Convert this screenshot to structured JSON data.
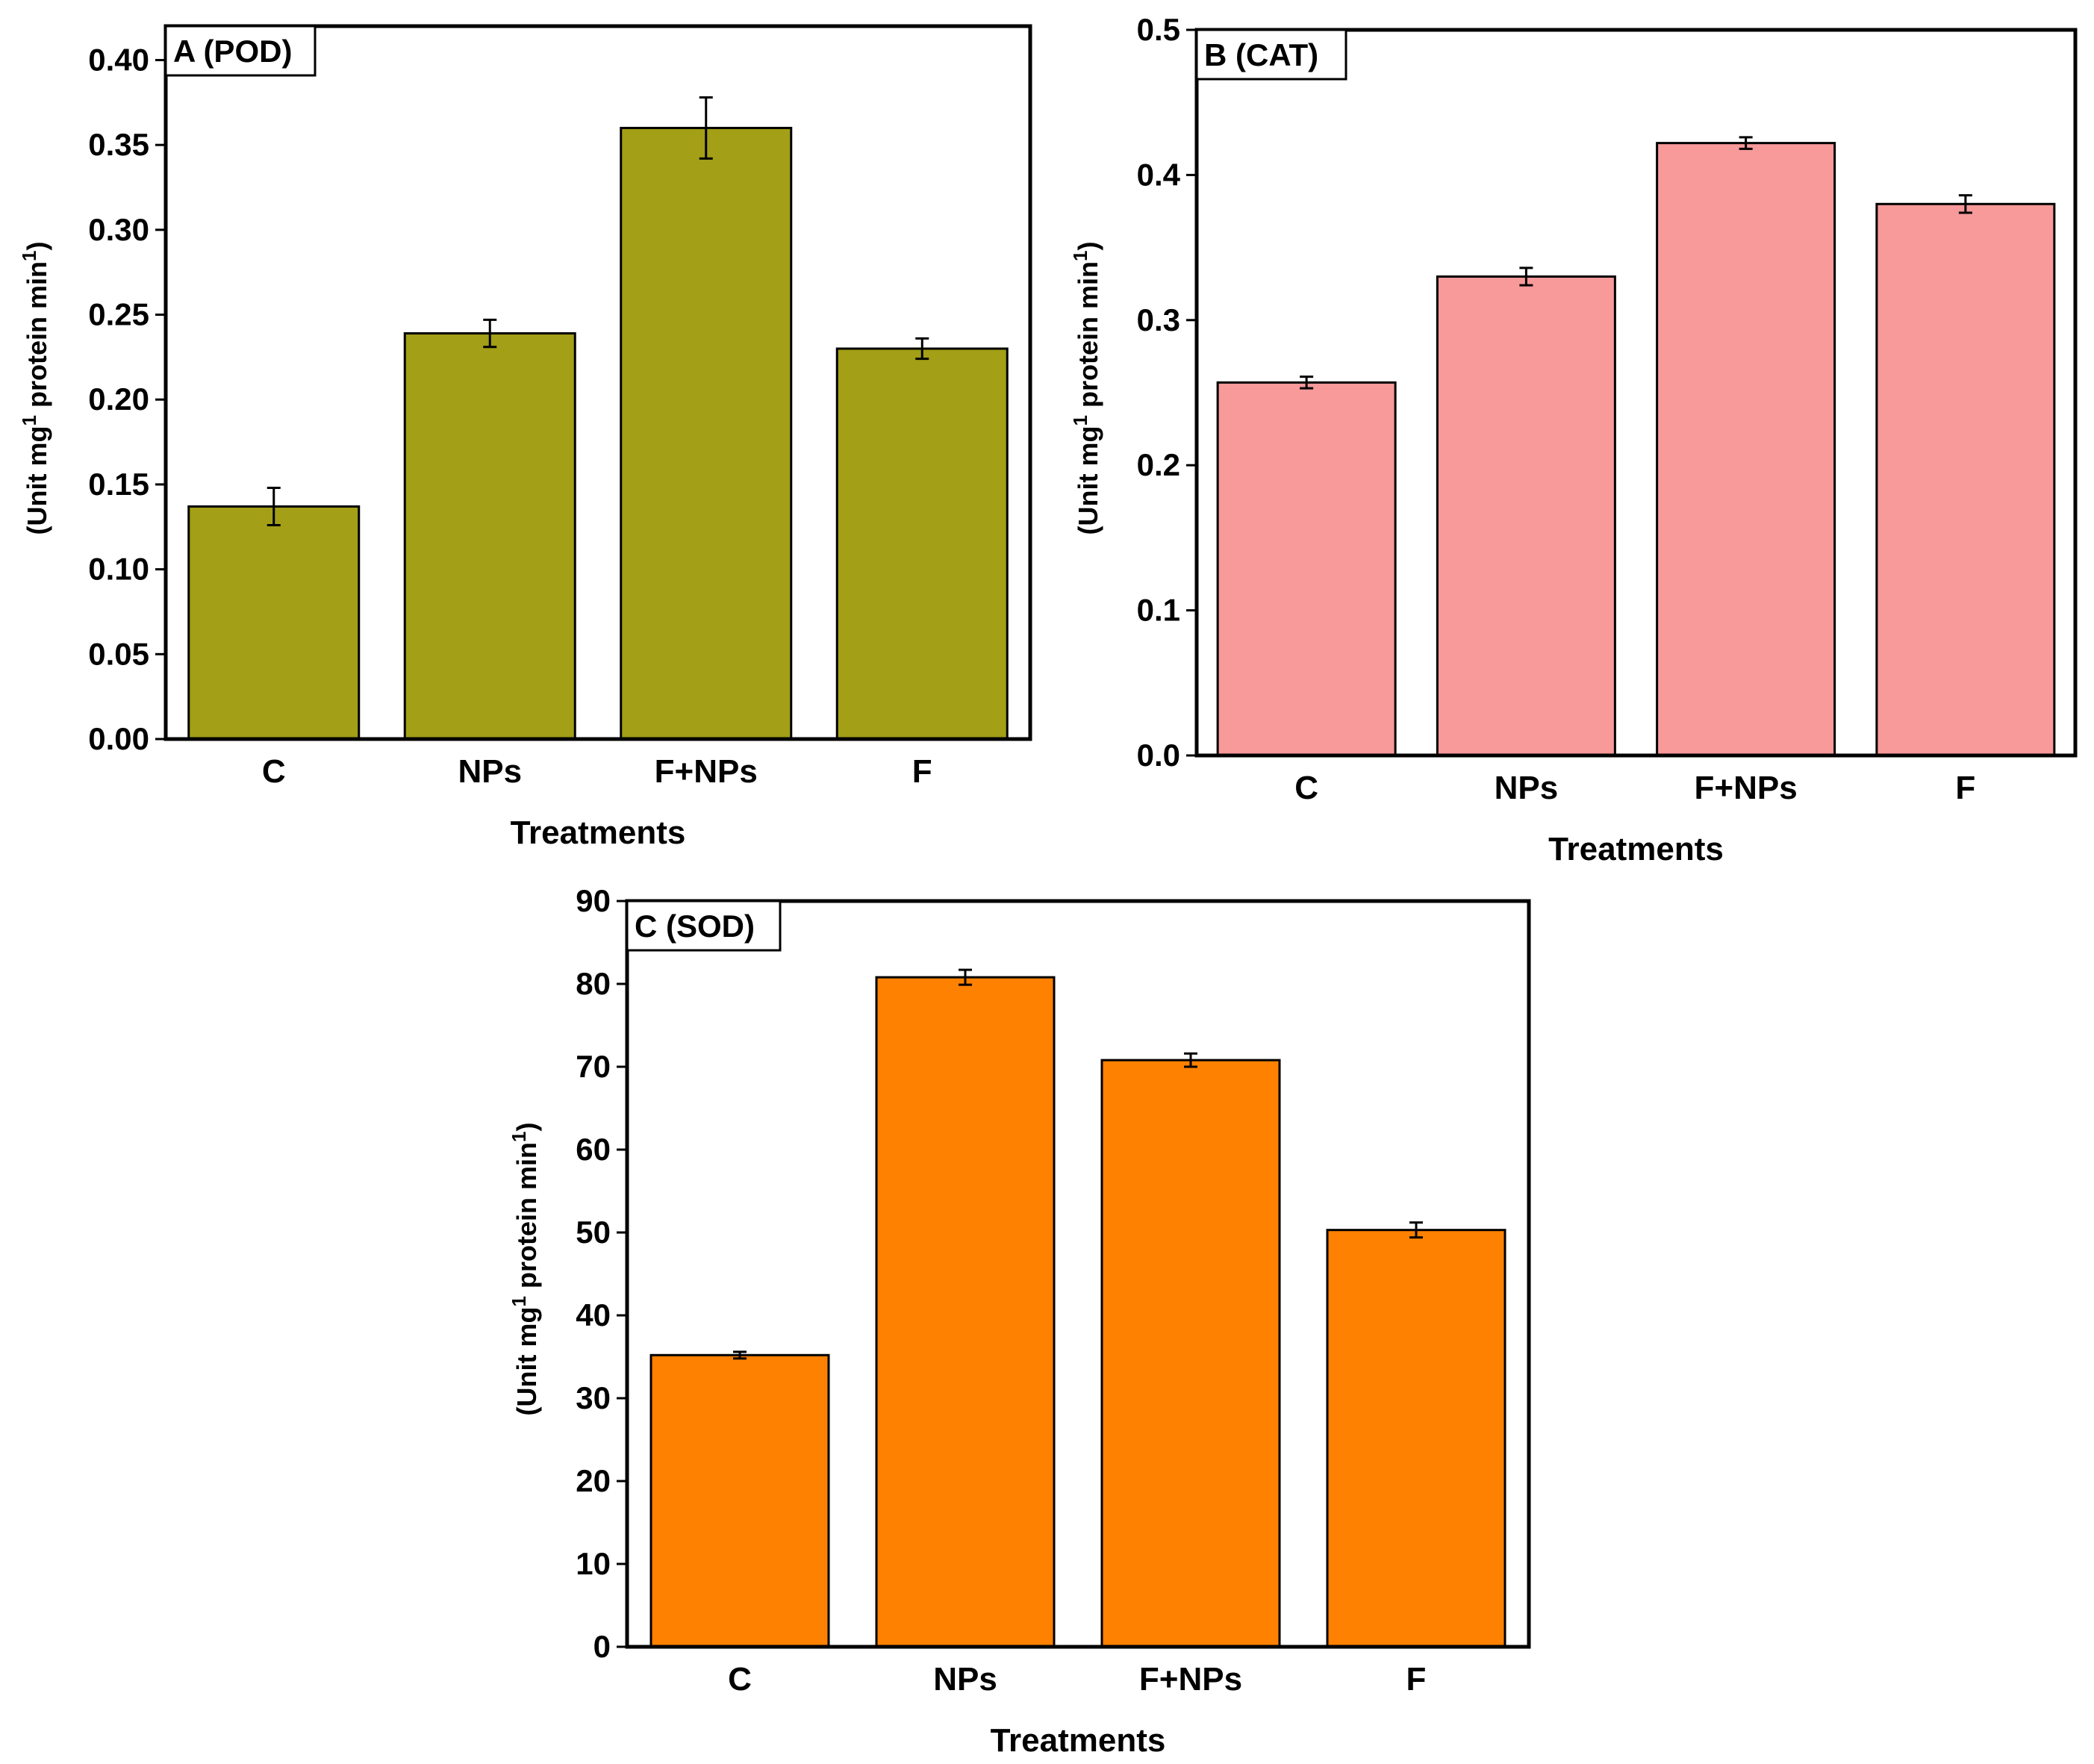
{
  "chart_data": [
    {
      "panel": "A",
      "type": "bar",
      "title": "A (POD)",
      "xlabel": "Treatments",
      "ylabel": {
        "main": "(Unit mg",
        "sup1": "1",
        "mid": " protein min",
        "sup2": "1",
        "end": ")"
      },
      "categories": [
        "C",
        "NPs",
        "F+NPs",
        "F"
      ],
      "values": [
        0.137,
        0.239,
        0.36,
        0.23
      ],
      "errors": [
        0.011,
        0.008,
        0.018,
        0.006
      ],
      "ylim": [
        0,
        0.42
      ],
      "yticks": [
        0.0,
        0.05,
        0.1,
        0.15,
        0.2,
        0.25,
        0.3,
        0.35,
        0.4
      ],
      "ytick_labels": [
        "0.00",
        "0.05",
        "0.10",
        "0.15",
        "0.20",
        "0.25",
        "0.30",
        "0.35",
        "0.40"
      ],
      "color": "#a39f16"
    },
    {
      "panel": "B",
      "type": "bar",
      "title": "B (CAT)",
      "xlabel": "Treatments",
      "ylabel": {
        "main": "(Unit mg",
        "sup1": "1",
        "mid": " protein min",
        "sup2": "1",
        "end": ")"
      },
      "categories": [
        "C",
        "NPs",
        "F+NPs",
        "F"
      ],
      "values": [
        0.257,
        0.33,
        0.422,
        0.38
      ],
      "errors": [
        0.004,
        0.006,
        0.004,
        0.006
      ],
      "ylim": [
        0,
        0.5
      ],
      "yticks": [
        0.0,
        0.1,
        0.2,
        0.3,
        0.4,
        0.5
      ],
      "ytick_labels": [
        "0.0",
        "0.1",
        "0.2",
        "0.3",
        "0.4",
        "0.5"
      ],
      "color": "#f8999a"
    },
    {
      "panel": "C",
      "type": "bar",
      "title": "C (SOD)",
      "xlabel": "Treatments",
      "ylabel": {
        "main": "(Unit mg",
        "sup1": "1",
        "mid": " protein min",
        "sup2": "1",
        "end": ")"
      },
      "categories": [
        "C",
        "NPs",
        "F+NPs",
        "F"
      ],
      "values": [
        35.2,
        80.8,
        70.8,
        50.3
      ],
      "errors": [
        0.4,
        0.9,
        0.8,
        0.9
      ],
      "ylim": [
        0,
        90
      ],
      "yticks": [
        0,
        10,
        20,
        30,
        40,
        50,
        60,
        70,
        80,
        90
      ],
      "ytick_labels": [
        "0",
        "10",
        "20",
        "30",
        "40",
        "50",
        "60",
        "70",
        "80",
        "90"
      ],
      "color": "#ff8102"
    }
  ]
}
